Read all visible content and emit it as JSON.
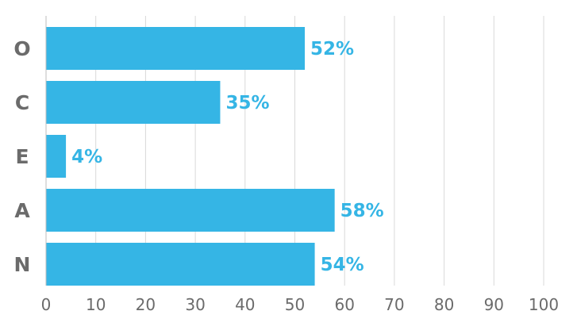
{
  "chart_data": {
    "type": "bar",
    "orientation": "horizontal",
    "categories": [
      "O",
      "C",
      "E",
      "A",
      "N"
    ],
    "values": [
      52,
      35,
      4,
      58,
      54
    ],
    "data_labels": [
      "52%",
      "35%",
      "4%",
      "58%",
      "54%"
    ],
    "xlim": [
      0,
      100
    ],
    "x_ticks": [
      0,
      10,
      20,
      30,
      40,
      50,
      60,
      70,
      80,
      90,
      100
    ],
    "x_tick_labels": [
      "0",
      "10",
      "20",
      "30",
      "40",
      "50",
      "60",
      "70",
      "80",
      "90",
      "100"
    ],
    "grid": true,
    "legend": "none",
    "title": "",
    "xlabel": "",
    "ylabel": "",
    "colors": {
      "bar": "#35b5e5",
      "data_label": "#35b5e5",
      "text": "#6b6b6b",
      "grid": "#d9d9d9"
    }
  }
}
